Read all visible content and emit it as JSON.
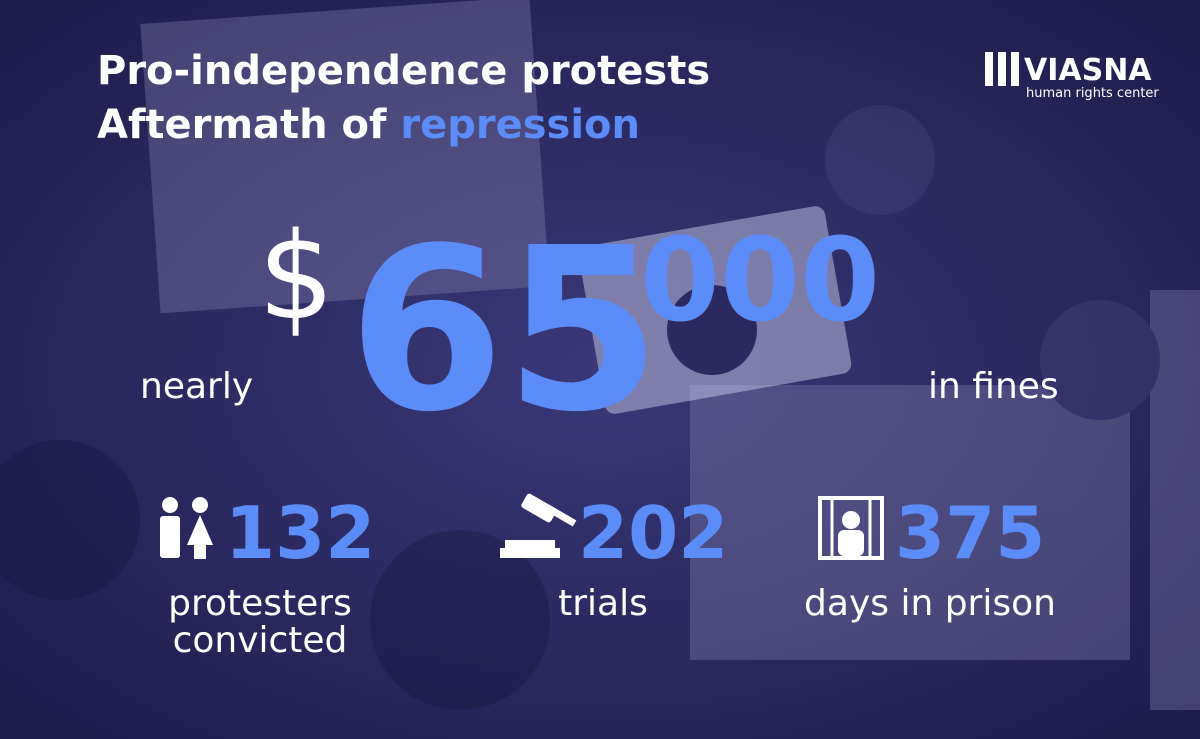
{
  "header": {
    "title_line1": "Pro-independence protests",
    "title_line2_prefix": "Aftermath of",
    "title_line2_highlight": "repression"
  },
  "logo": {
    "name": "VIASNA",
    "tagline": "human rights center"
  },
  "fines": {
    "currency": "$",
    "amount_main": "65",
    "amount_thousands": "000",
    "prefix": "nearly",
    "suffix": "in fines"
  },
  "stats": [
    {
      "value": 132,
      "label_line1": "protesters",
      "label_line2": "convicted"
    },
    {
      "value": 202,
      "label_line1": "trials"
    },
    {
      "value": 375,
      "label_line1": "days in prison"
    }
  ]
}
